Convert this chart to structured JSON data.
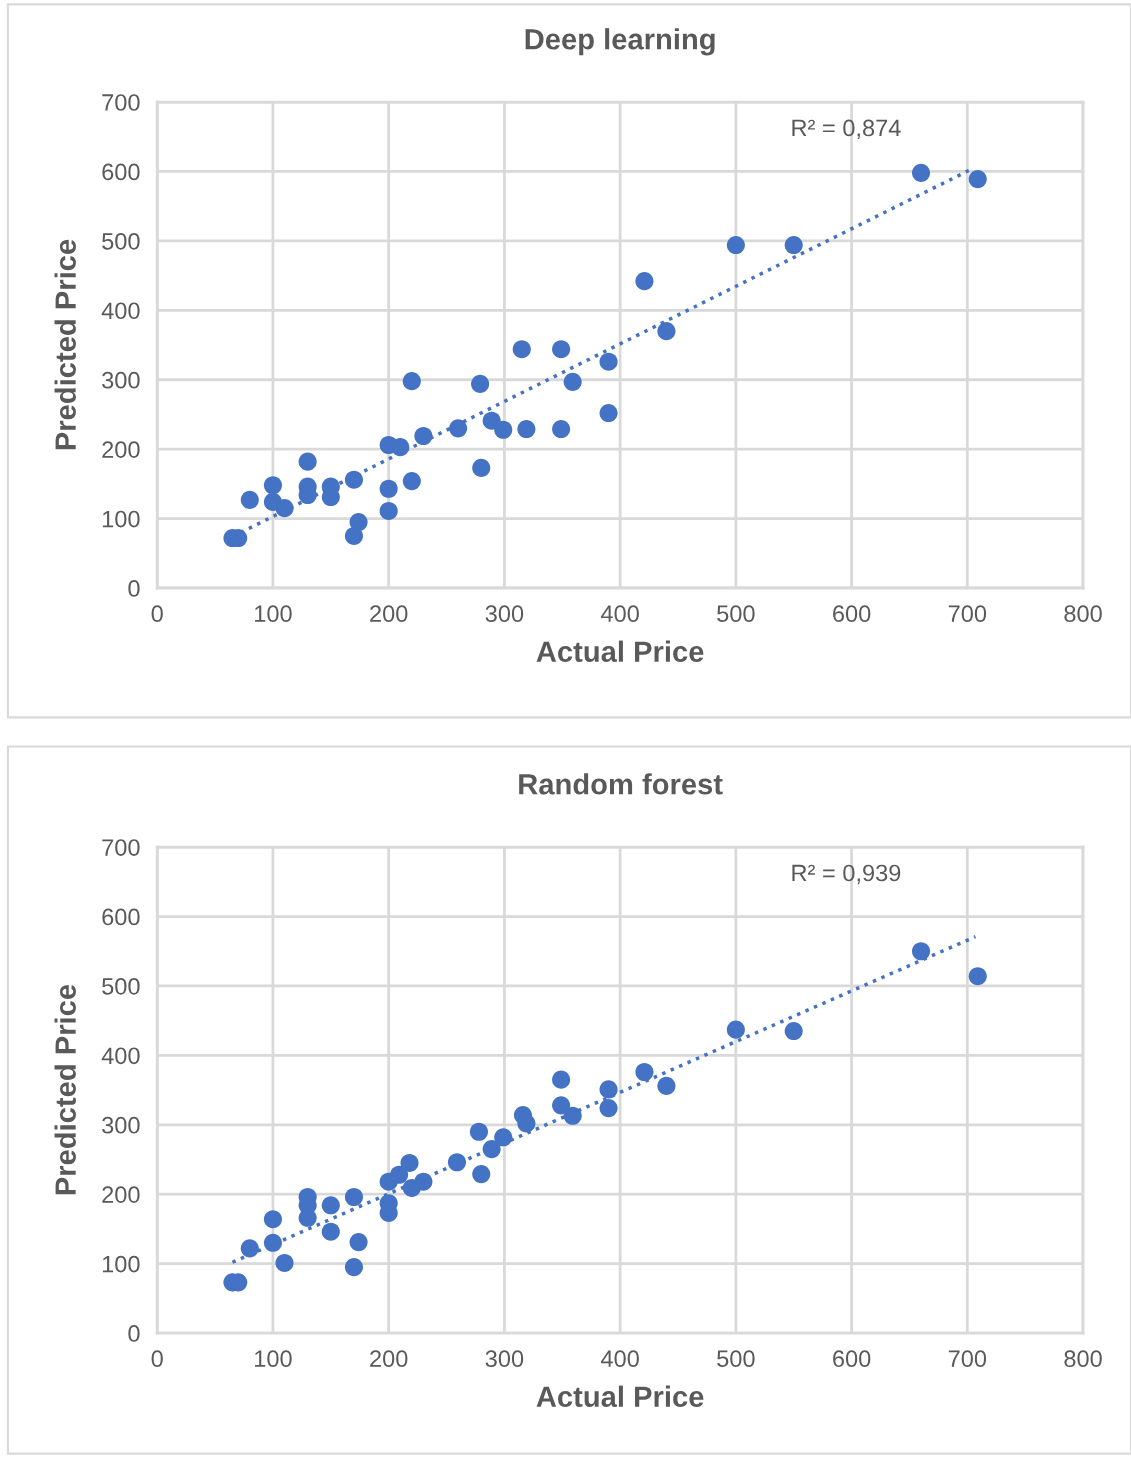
{
  "chart_data": [
    {
      "type": "scatter",
      "title": "Deep learning",
      "xlabel": "Actual Price",
      "ylabel": "Predicted Price",
      "xlim": [
        0,
        800
      ],
      "xticks": [
        0,
        100,
        200,
        300,
        400,
        500,
        600,
        700,
        800
      ],
      "ylim": [
        0,
        700
      ],
      "yticks": [
        0,
        100,
        200,
        300,
        400,
        500,
        600,
        700
      ],
      "grid": true,
      "legend": false,
      "marker": "circle",
      "series": [
        {
          "color": "#4472c4",
          "x": [
            65,
            70,
            80,
            100,
            100,
            110,
            130,
            130,
            130,
            150,
            150,
            170,
            174,
            170,
            200,
            210,
            200,
            200,
            220,
            220,
            230,
            260,
            279,
            280,
            289,
            299,
            319,
            315,
            349,
            349,
            359,
            390,
            390,
            421,
            440,
            500,
            550,
            660,
            709
          ],
          "values": [
            72,
            72,
            127,
            148,
            124,
            115,
            182,
            146,
            134,
            146,
            131,
            156,
            95,
            75,
            206,
            203,
            143,
            111,
            154,
            298,
            219,
            230,
            294,
            173,
            241,
            228,
            229,
            344,
            344,
            229,
            297,
            326,
            252,
            442,
            370,
            494,
            494,
            598,
            589
          ]
        },
        {
          "type": "line",
          "color": "#4472c4",
          "line_style": "dotted",
          "marker": "none",
          "x": [
            65,
            702
          ],
          "values": [
            74,
            602
          ]
        }
      ],
      "annotations": [
        "R² = 0,874"
      ]
    },
    {
      "type": "scatter",
      "title": "Random forest",
      "xlabel": "Actual Price",
      "ylabel": "Predicted Price",
      "xlim": [
        0,
        800
      ],
      "xticks": [
        0,
        100,
        200,
        300,
        400,
        500,
        600,
        700,
        800
      ],
      "ylim": [
        0,
        700
      ],
      "yticks": [
        0,
        100,
        200,
        300,
        400,
        500,
        600,
        700
      ],
      "grid": true,
      "legend": false,
      "marker": "circle",
      "series": [
        {
          "color": "#4472c4",
          "x": [
            65,
            70,
            80,
            100,
            100,
            110,
            130,
            130,
            130,
            150,
            150,
            170,
            174,
            170,
            200,
            200,
            200,
            209,
            218,
            220,
            230,
            259,
            278,
            280,
            289,
            299,
            316,
            319,
            349,
            349,
            359,
            390,
            390,
            421,
            440,
            500,
            550,
            660,
            709
          ],
          "values": [
            73,
            73,
            122,
            164,
            130,
            101,
            196,
            184,
            166,
            184,
            146,
            196,
            131,
            95,
            187,
            173,
            218,
            228,
            245,
            209,
            218,
            246,
            290,
            229,
            265,
            282,
            314,
            302,
            365,
            328,
            313,
            351,
            324,
            376,
            356,
            437,
            435,
            550,
            514
          ]
        },
        {
          "type": "line",
          "color": "#4472c4",
          "line_style": "dotted",
          "marker": "none",
          "x": [
            65,
            707
          ],
          "values": [
            102,
            571
          ]
        }
      ],
      "annotations": [
        "R² = 0,939"
      ]
    }
  ]
}
